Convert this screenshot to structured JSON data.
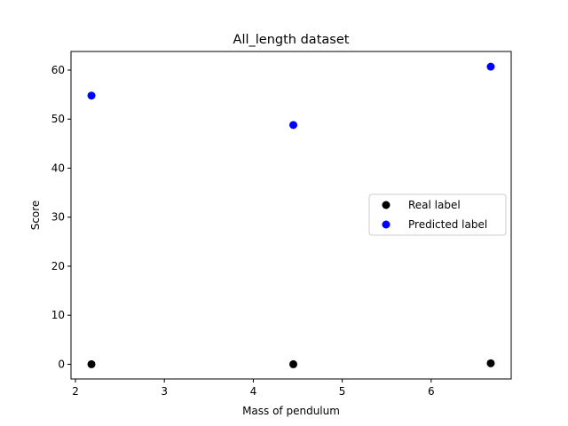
{
  "chart_data": {
    "type": "scatter",
    "title": "All_length dataset",
    "xlabel": "Mass of pendulum",
    "ylabel": "Score",
    "xlim": [
      1.95,
      6.9
    ],
    "ylim": [
      -3.0,
      63.8
    ],
    "xticks": [
      2,
      3,
      4,
      5,
      6
    ],
    "yticks": [
      0,
      10,
      20,
      30,
      40,
      50,
      60
    ],
    "grid": false,
    "legend_position": "center-right",
    "series": [
      {
        "name": "Real label",
        "color": "#000000",
        "x": [
          2.18,
          4.45,
          6.67
        ],
        "y": [
          0.0,
          0.0,
          0.2
        ]
      },
      {
        "name": "Predicted label",
        "color": "#0000ff",
        "x": [
          2.18,
          4.45,
          6.67
        ],
        "y": [
          54.8,
          48.8,
          60.7
        ]
      }
    ]
  }
}
